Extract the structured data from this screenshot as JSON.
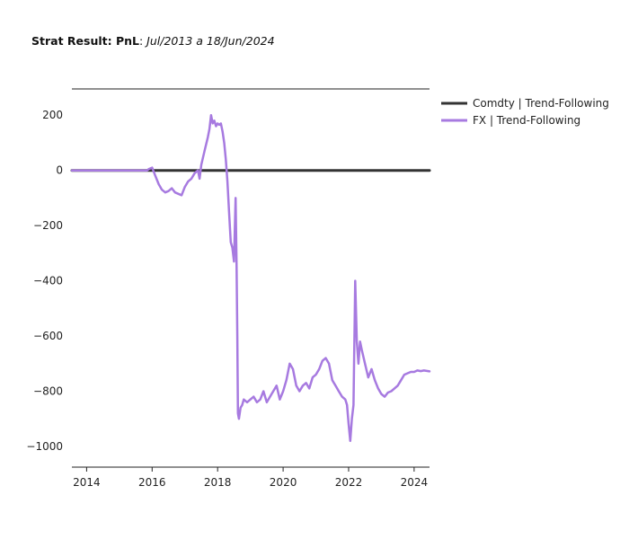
{
  "title": {
    "bold": "Strat Result: PnL",
    "sep": ": ",
    "italic": "Jul/2013 a 18/Jun/2024"
  },
  "chart_data": {
    "type": "line",
    "title": "Strat Result: PnL: Jul/2013 a 18/Jun/2024",
    "xlabel": "",
    "ylabel": "",
    "xlim": [
      2013.55,
      2024.47
    ],
    "ylim": [
      -1075,
      295
    ],
    "xticks": [
      2014,
      2016,
      2018,
      2020,
      2022,
      2024
    ],
    "yticks": [
      200,
      0,
      -200,
      -400,
      -600,
      -800,
      -1000
    ],
    "ytick_labels": [
      "200",
      "0",
      "−200",
      "−400",
      "−600",
      "−800",
      "−1000"
    ],
    "legend_position": "right",
    "series": [
      {
        "name": "Comdty | Trend-Following",
        "color": "#333333",
        "x": [
          2013.55,
          2024.47
        ],
        "y": [
          0,
          0
        ]
      },
      {
        "name": "FX | Trend-Following",
        "color": "#a77ae0",
        "x": [
          2013.55,
          2014.5,
          2015.5,
          2015.85,
          2015.9,
          2016.0,
          2016.1,
          2016.2,
          2016.3,
          2016.4,
          2016.5,
          2016.6,
          2016.7,
          2016.8,
          2016.9,
          2017.0,
          2017.1,
          2017.2,
          2017.3,
          2017.4,
          2017.45,
          2017.5,
          2017.6,
          2017.7,
          2017.75,
          2017.8,
          2017.85,
          2017.9,
          2017.95,
          2018.0,
          2018.05,
          2018.1,
          2018.15,
          2018.2,
          2018.25,
          2018.3,
          2018.35,
          2018.4,
          2018.45,
          2018.5,
          2018.55,
          2018.58,
          2018.6,
          2018.62,
          2018.65,
          2018.7,
          2018.75,
          2018.8,
          2018.9,
          2019.0,
          2019.1,
          2019.2,
          2019.3,
          2019.4,
          2019.5,
          2019.6,
          2019.7,
          2019.8,
          2019.9,
          2020.0,
          2020.1,
          2020.2,
          2020.3,
          2020.4,
          2020.5,
          2020.6,
          2020.7,
          2020.8,
          2020.9,
          2021.0,
          2021.1,
          2021.2,
          2021.3,
          2021.4,
          2021.5,
          2021.6,
          2021.7,
          2021.8,
          2021.9,
          2021.95,
          2022.0,
          2022.05,
          2022.1,
          2022.15,
          2022.2,
          2022.25,
          2022.3,
          2022.35,
          2022.4,
          2022.5,
          2022.6,
          2022.7,
          2022.8,
          2022.9,
          2023.0,
          2023.1,
          2023.2,
          2023.3,
          2023.4,
          2023.5,
          2023.6,
          2023.7,
          2023.8,
          2023.9,
          2024.0,
          2024.1,
          2024.2,
          2024.3,
          2024.47
        ],
        "y": [
          0,
          0,
          0,
          0,
          5,
          10,
          -20,
          -50,
          -70,
          -80,
          -75,
          -65,
          -80,
          -85,
          -90,
          -60,
          -40,
          -30,
          -10,
          0,
          -30,
          20,
          70,
          120,
          150,
          200,
          170,
          180,
          160,
          170,
          165,
          170,
          140,
          100,
          40,
          -40,
          -150,
          -260,
          -280,
          -330,
          -100,
          -350,
          -600,
          -880,
          -900,
          -860,
          -850,
          -830,
          -840,
          -830,
          -820,
          -840,
          -830,
          -800,
          -840,
          -820,
          -800,
          -780,
          -830,
          -800,
          -760,
          -700,
          -720,
          -780,
          -800,
          -780,
          -770,
          -790,
          -750,
          -740,
          -720,
          -690,
          -680,
          -700,
          -760,
          -780,
          -800,
          -820,
          -830,
          -850,
          -920,
          -980,
          -900,
          -850,
          -400,
          -620,
          -700,
          -620,
          -650,
          -700,
          -750,
          -720,
          -760,
          -790,
          -810,
          -820,
          -805,
          -800,
          -790,
          -780,
          -760,
          -740,
          -735,
          -730,
          -730,
          -725,
          -727,
          -725,
          -728
        ]
      }
    ]
  }
}
